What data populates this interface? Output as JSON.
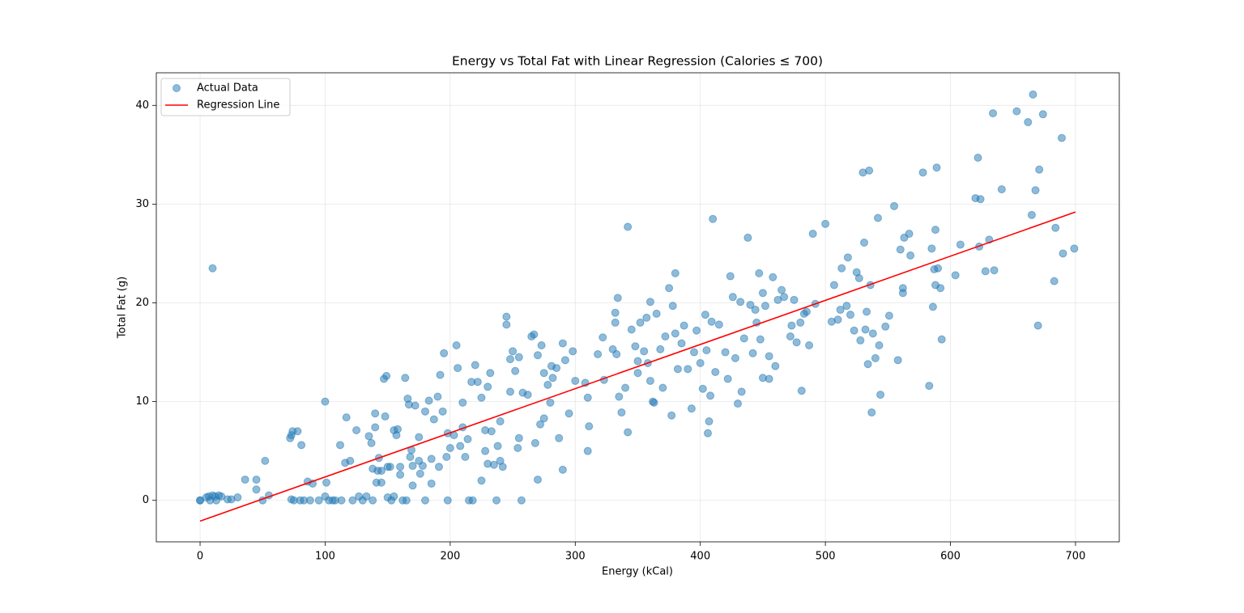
{
  "chart_data": {
    "type": "scatter",
    "title": "Energy vs Total Fat with Linear Regression (Calories ≤ 700)",
    "x_label": "Energy (kCal)",
    "y_label": "Total Fat (g)",
    "xlim": [
      -35,
      735
    ],
    "ylim": [
      -4.2,
      43.3
    ],
    "xticks": [
      0,
      100,
      200,
      300,
      400,
      500,
      600,
      700
    ],
    "yticks": [
      0,
      10,
      20,
      30,
      40
    ],
    "grid": true,
    "legend": "upper left",
    "series": [
      {
        "name": "Actual Data",
        "type": "scatter",
        "color": "#1f77b4",
        "x": [
          0,
          0,
          5,
          7,
          8,
          10,
          12,
          13,
          15,
          17,
          10,
          22,
          25,
          30,
          36,
          45,
          45,
          50,
          52,
          55,
          72,
          73,
          74,
          78,
          73,
          75,
          80,
          81,
          83,
          86,
          88,
          90,
          95,
          100,
          100,
          101,
          103,
          106,
          108,
          112,
          113,
          116,
          117,
          120,
          122,
          125,
          127,
          130,
          133,
          135,
          137,
          138,
          138,
          140,
          140,
          141,
          142,
          143,
          145,
          145,
          147,
          148,
          149,
          150,
          150,
          152,
          153,
          155,
          155,
          157,
          158,
          160,
          160,
          162,
          164,
          165,
          166,
          167,
          168,
          169,
          170,
          170,
          172,
          175,
          175,
          176,
          178,
          180,
          180,
          183,
          185,
          185,
          187,
          190,
          191,
          192,
          194,
          195,
          197,
          198,
          198,
          200,
          203,
          205,
          206,
          208,
          210,
          210,
          212,
          214,
          215,
          217,
          218,
          220,
          222,
          225,
          225,
          228,
          228,
          230,
          230,
          232,
          233,
          235,
          237,
          238,
          240,
          240,
          242,
          245,
          245,
          248,
          248,
          250,
          252,
          254,
          255,
          255,
          257,
          258,
          262,
          265,
          267,
          268,
          270,
          270,
          272,
          273,
          275,
          275,
          278,
          280,
          281,
          282,
          285,
          287,
          290,
          290,
          292,
          295,
          298,
          300,
          308,
          310,
          310,
          311,
          318,
          322,
          323,
          330,
          332,
          332,
          333,
          334,
          335,
          337,
          340,
          342,
          342,
          345,
          348,
          350,
          350,
          352,
          355,
          357,
          358,
          360,
          360,
          362,
          363,
          365,
          368,
          370,
          372,
          375,
          377,
          378,
          380,
          380,
          382,
          385,
          387,
          390,
          393,
          395,
          397,
          400,
          402,
          404,
          405,
          406,
          407,
          408,
          409,
          410,
          412,
          415,
          420,
          422,
          424,
          426,
          428,
          430,
          432,
          433,
          435,
          438,
          440,
          442,
          444,
          445,
          447,
          448,
          450,
          450,
          452,
          455,
          455,
          458,
          460,
          462,
          465,
          467,
          472,
          473,
          475,
          477,
          480,
          481,
          483,
          485,
          487,
          490,
          492,
          500,
          505,
          507,
          510,
          512,
          513,
          517,
          518,
          520,
          523,
          525,
          527,
          528,
          530,
          531,
          532,
          533,
          534,
          535,
          536,
          537,
          538,
          540,
          542,
          543,
          544,
          548,
          551,
          555,
          558,
          560,
          562,
          562,
          563,
          567,
          568,
          578,
          583,
          585,
          586,
          587,
          588,
          588,
          589,
          590,
          592,
          593,
          604,
          608,
          620,
          622,
          623,
          624,
          628,
          631,
          634,
          635,
          641,
          653,
          662,
          665,
          666,
          668,
          670,
          671,
          674,
          683,
          684,
          689,
          690,
          699
        ],
        "values": [
          0,
          0,
          0.3,
          0.4,
          0,
          0.5,
          0.4,
          0,
          0.5,
          0.4,
          23.5,
          0.1,
          0.1,
          0.3,
          2.1,
          2.1,
          1.1,
          0,
          4.0,
          0.5,
          6.3,
          6.6,
          7.0,
          7.0,
          0.1,
          0,
          0,
          5.6,
          0,
          1.9,
          0,
          1.7,
          0,
          10,
          0.4,
          1.8,
          0,
          0,
          0,
          5.6,
          0,
          3.8,
          8.4,
          4.0,
          0,
          7.1,
          0.4,
          0,
          0.4,
          6.5,
          5.8,
          3.2,
          0,
          8.8,
          7.4,
          1.8,
          3.0,
          4.3,
          3.0,
          1.8,
          12.3,
          8.5,
          12.6,
          3.4,
          0.3,
          3.4,
          0,
          7.1,
          0.4,
          6.6,
          7.2,
          3.4,
          2.6,
          0,
          12.4,
          0,
          10.3,
          9.7,
          4.4,
          5.1,
          3.5,
          1.5,
          9.6,
          6.4,
          4.0,
          2.7,
          3.5,
          9.0,
          0,
          10.1,
          4.2,
          1.7,
          8.2,
          10.5,
          3.4,
          12.7,
          9.0,
          14.9,
          4.4,
          6.8,
          0,
          5.3,
          6.6,
          15.7,
          13.4,
          5.5,
          7.4,
          9.9,
          4.4,
          6.2,
          0,
          12.0,
          0,
          13.7,
          12.0,
          10.4,
          2.0,
          7.1,
          5.0,
          11.5,
          3.7,
          12.9,
          7.0,
          3.6,
          0,
          5.5,
          8.0,
          4.0,
          3.4,
          18.6,
          17.8,
          11.0,
          14.3,
          15.1,
          13.1,
          5.3,
          6.3,
          14.5,
          0,
          10.9,
          10.7,
          16.6,
          16.8,
          5.8,
          14.7,
          2.1,
          7.7,
          15.7,
          8.3,
          12.9,
          11.7,
          9.9,
          13.6,
          12.4,
          13.4,
          6.3,
          15.9,
          3.1,
          14.2,
          8.8,
          15.1,
          12.1,
          11.9,
          10.4,
          5.0,
          7.5,
          14.8,
          16.5,
          12.2,
          15.3,
          19.0,
          18.0,
          14.8,
          20.5,
          10.5,
          8.9,
          11.4,
          27.7,
          6.9,
          17.3,
          15.6,
          14.1,
          12.9,
          18.0,
          15.1,
          18.5,
          13.9,
          20.1,
          12.1,
          10.0,
          9.9,
          18.9,
          15.3,
          11.4,
          16.6,
          21.5,
          8.6,
          19.7,
          23.0,
          16.9,
          13.3,
          15.9,
          17.7,
          13.3,
          9.3,
          15.0,
          17.2,
          13.9,
          11.3,
          18.8,
          15.2,
          6.8,
          8.0,
          10.6,
          18.1,
          28.5,
          13.0,
          17.8,
          15.0,
          12.3,
          22.7,
          20.6,
          14.4,
          9.8,
          20.1,
          11.0,
          16.4,
          26.6,
          19.8,
          14.9,
          19.3,
          18.0,
          23.0,
          16.3,
          21.0,
          12.4,
          19.7,
          14.6,
          12.3,
          22.6,
          13.6,
          20.3,
          21.3,
          20.6,
          16.6,
          17.7,
          20.3,
          16.0,
          18.0,
          11.1,
          18.9,
          19.1,
          15.7,
          27.0,
          19.9,
          28.0,
          18.1,
          21.8,
          18.3,
          19.3,
          23.5,
          19.7,
          24.6,
          18.8,
          17.2,
          23.1,
          22.5,
          16.2,
          33.2,
          26.1,
          17.3,
          19.1,
          13.8,
          33.4,
          21.8,
          8.9,
          16.9,
          14.4,
          28.6,
          15.7,
          10.7,
          17.6,
          18.7,
          29.8,
          14.2,
          25.4,
          21.5,
          21.0,
          26.6,
          27.0,
          24.8,
          33.2,
          11.6,
          25.5,
          19.6,
          23.4,
          27.4,
          21.8,
          33.7,
          23.5,
          21.5,
          16.3,
          22.8,
          25.9,
          30.6,
          34.7,
          25.7,
          30.5,
          23.2,
          26.4,
          39.2,
          23.3,
          31.5,
          39.4,
          38.3,
          28.9,
          41.1,
          31.4,
          17.7,
          33.5,
          39.1,
          22.2,
          27.6,
          36.7,
          25.0,
          25.5
        ]
      },
      {
        "name": "Regression Line",
        "type": "line",
        "color": "#ff0000",
        "x": [
          0,
          700
        ],
        "values": [
          -2.1,
          29.2
        ]
      }
    ]
  }
}
